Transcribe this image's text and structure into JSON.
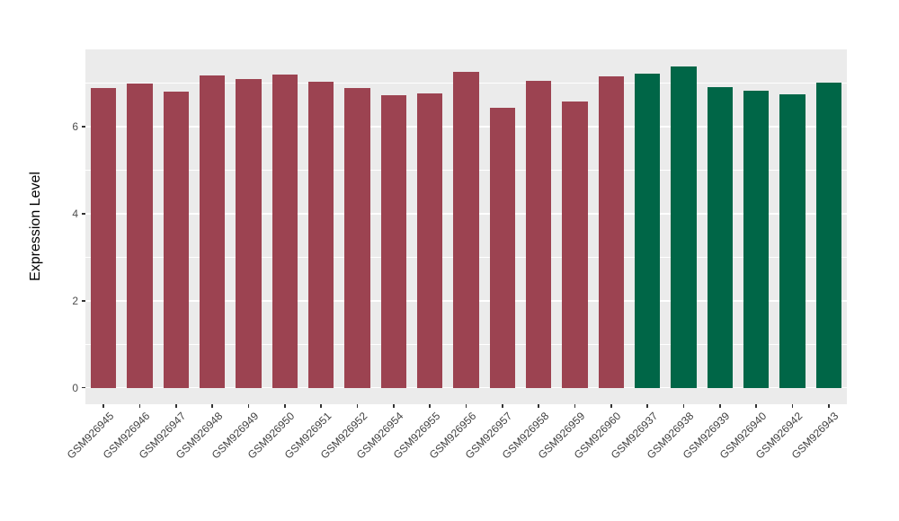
{
  "chart_data": {
    "type": "bar",
    "title": "",
    "xlabel": "",
    "ylabel": "Expression Level",
    "categories": [
      "GSM926945",
      "GSM926946",
      "GSM926947",
      "GSM926948",
      "GSM926949",
      "GSM926950",
      "GSM926951",
      "GSM926952",
      "GSM926954",
      "GSM926955",
      "GSM926956",
      "GSM926957",
      "GSM926958",
      "GSM926959",
      "GSM926960",
      "GSM926937",
      "GSM926938",
      "GSM926939",
      "GSM926940",
      "GSM926942",
      "GSM926943"
    ],
    "values": [
      6.89,
      7.0,
      6.8,
      7.19,
      7.1,
      7.21,
      7.04,
      6.89,
      6.73,
      6.76,
      7.26,
      6.43,
      7.06,
      6.59,
      7.15,
      7.23,
      7.38,
      6.92,
      6.84,
      6.74,
      7.02
    ],
    "groups": [
      "maroon",
      "maroon",
      "maroon",
      "maroon",
      "maroon",
      "maroon",
      "maroon",
      "maroon",
      "maroon",
      "maroon",
      "maroon",
      "maroon",
      "maroon",
      "maroon",
      "maroon",
      "green",
      "green",
      "green",
      "green",
      "green",
      "green"
    ],
    "group_colors": {
      "maroon": "#9C4351",
      "green": "#006647"
    },
    "y_ticks": [
      0,
      2,
      4,
      6
    ],
    "y_minor_ticks": [
      1,
      3,
      5,
      7
    ],
    "ylim": [
      -0.38,
      7.78
    ],
    "grid": "on",
    "legend_position": "none",
    "panel_background": "#EBEBEB",
    "gridline_color": "#FFFFFF"
  }
}
